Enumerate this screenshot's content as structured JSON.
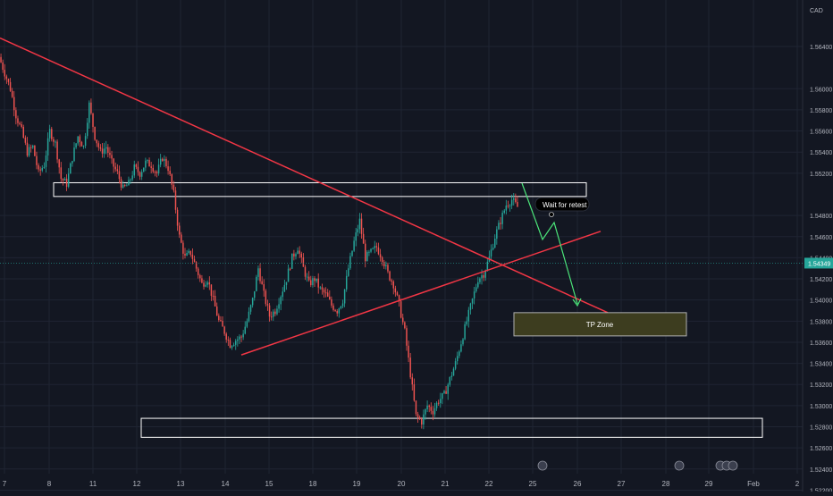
{
  "colors": {
    "background": "#131722",
    "grid": "#1f2433",
    "axis_text": "#b2b5be",
    "candle_up": "#26a69a",
    "candle_down": "#ef5350",
    "trend_line": "#f23645",
    "zone_border": "#ffffff",
    "arrow": "#4ce67a",
    "tp_zone_fill": "#3d3d1f",
    "tp_zone_border": "#b0b0b0",
    "price_label_bg": "#26a69a"
  },
  "chart_data": {
    "type": "candlestick",
    "currency": "CAD",
    "current_price": "1.54349",
    "x_ticks": [
      "7",
      "8",
      "11",
      "12",
      "13",
      "14",
      "15",
      "18",
      "19",
      "20",
      "21",
      "22",
      "25",
      "26",
      "27",
      "28",
      "29",
      "Feb",
      "2"
    ],
    "y_ticks": [
      "1.56400",
      "1.56000",
      "1.55800",
      "1.55600",
      "1.55400",
      "1.55200",
      "1.54800",
      "1.54600",
      "1.54400",
      "1.54200",
      "1.54000",
      "1.53800",
      "1.53600",
      "1.53400",
      "1.53200",
      "1.53000",
      "1.52800",
      "1.52600",
      "1.52400",
      "1.52200"
    ],
    "ylim": [
      1.522,
      1.566
    ],
    "price_path": [
      1.563,
      1.5615,
      1.56,
      1.5575,
      1.556,
      1.554,
      1.5545,
      1.552,
      1.5528,
      1.556,
      1.5548,
      1.5515,
      1.551,
      1.5535,
      1.5555,
      1.5545,
      1.5585,
      1.5555,
      1.554,
      1.5545,
      1.553,
      1.552,
      1.5505,
      1.551,
      1.5525,
      1.552,
      1.553,
      1.5528,
      1.552,
      1.5535,
      1.5525,
      1.55,
      1.546,
      1.544,
      1.5445,
      1.543,
      1.5415,
      1.542,
      1.54,
      1.538,
      1.537,
      1.5358,
      1.5362,
      1.5365,
      1.538,
      1.54,
      1.543,
      1.5405,
      1.5385,
      1.539,
      1.5405,
      1.542,
      1.544,
      1.545,
      1.543,
      1.5415,
      1.542,
      1.541,
      1.5405,
      1.5395,
      1.539,
      1.54,
      1.543,
      1.5455,
      1.5475,
      1.544,
      1.5445,
      1.545,
      1.544,
      1.5425,
      1.5415,
      1.5395,
      1.537,
      1.533,
      1.529,
      1.5285,
      1.53,
      1.5295,
      1.5305,
      1.531,
      1.5325,
      1.534,
      1.536,
      1.538,
      1.54,
      1.542,
      1.5425,
      1.544,
      1.546,
      1.5475,
      1.549,
      1.5495,
      1.5488
    ],
    "support_zones": [
      {
        "from_x": "8",
        "to_x": "25",
        "low": 1.5498,
        "high": 1.5511
      },
      {
        "from_x": "12",
        "to_x": "29",
        "low": 1.527,
        "high": 1.5288
      }
    ],
    "trend_lines": [
      {
        "points": [
          [
            1.5648,
            "7"
          ],
          [
            1.5388,
            "26"
          ]
        ]
      },
      {
        "points": [
          [
            1.5348,
            "14"
          ],
          [
            1.5465,
            "27"
          ]
        ]
      }
    ],
    "annotations": [
      "Wait for retest",
      "TP Zone"
    ],
    "tp_zone": {
      "low": 1.5366,
      "high": 1.5388
    }
  }
}
